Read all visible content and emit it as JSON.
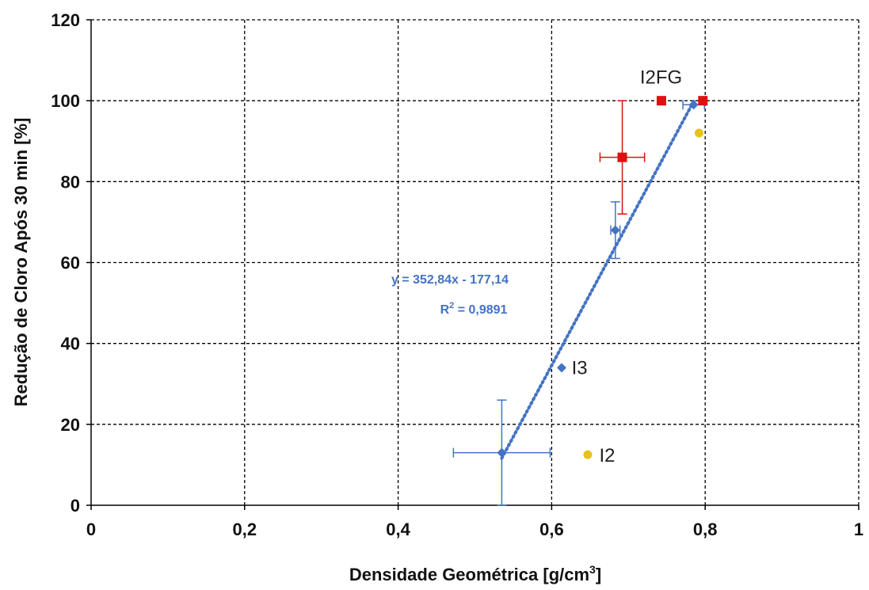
{
  "chart_data": {
    "type": "scatter",
    "xlabel": "Densidade Geométrica [g/cm",
    "xlabel_sup": "3",
    "xlabel_end": "]",
    "ylabel": "Redução de Cloro Após 30 min [%]",
    "xlim": [
      0,
      1
    ],
    "ylim": [
      0,
      120
    ],
    "x_ticks": [
      0,
      0.2,
      0.4,
      0.6,
      0.8,
      1
    ],
    "x_tick_labels": [
      "0",
      "0,2",
      "0,4",
      "0,6",
      "0,8",
      "1"
    ],
    "y_ticks": [
      0,
      20,
      40,
      60,
      80,
      100,
      120
    ],
    "y_tick_labels": [
      "0",
      "20",
      "40",
      "60",
      "80",
      "100",
      "120"
    ],
    "grid": true,
    "legend": "none",
    "series": [
      {
        "color": "#4472c4",
        "marker": "diamond",
        "points": [
          {
            "x": 0.535,
            "y": 13,
            "xerr": 0.063,
            "yerr": 13
          },
          {
            "x": 0.613,
            "y": 34
          },
          {
            "x": 0.683,
            "y": 68,
            "xerr": 0.006,
            "yerr": 7
          },
          {
            "x": 0.785,
            "y": 99,
            "xerr": 0.014
          }
        ]
      },
      {
        "color": "#e8c21c",
        "marker": "circle",
        "points": [
          {
            "x": 0.647,
            "y": 12.5
          },
          {
            "x": 0.792,
            "y": 92
          }
        ]
      },
      {
        "color": "#dd1111",
        "marker": "square",
        "points": [
          {
            "x": 0.692,
            "y": 86,
            "xerr": 0.029,
            "yerr": 14
          },
          {
            "x": 0.743,
            "y": 100
          },
          {
            "x": 0.797,
            "y": 100
          }
        ]
      }
    ],
    "trendline": {
      "slope": 352.84,
      "intercept": -177.14,
      "x_range": [
        0.535,
        0.785
      ],
      "color": "#4472c4",
      "style": "dotted"
    },
    "equation_text": "y = 352,84x - 177,14",
    "r2_prefix": "R",
    "r2_sup": "2",
    "r2_value": " = 0,9891",
    "annotations": [
      {
        "text": "I2FG",
        "x": 0.715,
        "y": 104.2
      },
      {
        "text": "I3",
        "x": 0.626,
        "y": 32.4
      },
      {
        "text": "I2",
        "x": 0.662,
        "y": 10.8
      }
    ]
  }
}
